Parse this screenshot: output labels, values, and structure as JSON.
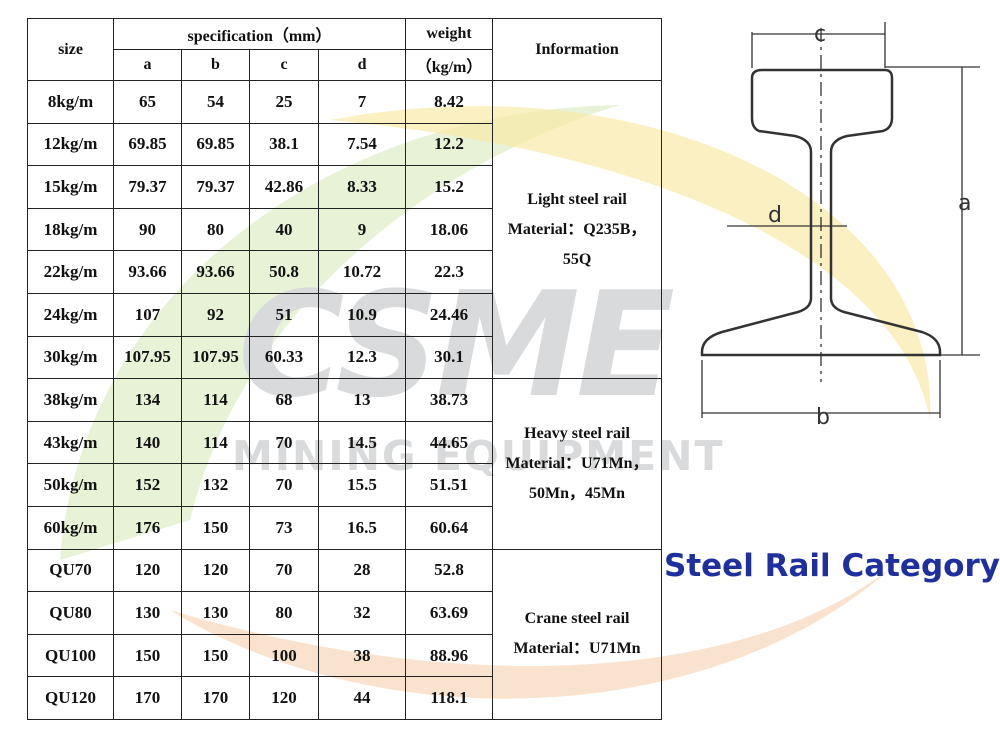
{
  "header": {
    "size": "size",
    "specification": "specification（mm）",
    "weight": "weight",
    "weight_unit": "（kg/m）",
    "information": "Information",
    "cols": [
      "a",
      "b",
      "c",
      "d"
    ]
  },
  "rows": [
    {
      "size": "8kg/m",
      "a": "65",
      "b": "54",
      "c": "25",
      "d": "7",
      "weight": "8.42"
    },
    {
      "size": "12kg/m",
      "a": "69.85",
      "b": "69.85",
      "c": "38.1",
      "d": "7.54",
      "weight": "12.2"
    },
    {
      "size": "15kg/m",
      "a": "79.37",
      "b": "79.37",
      "c": "42.86",
      "d": "8.33",
      "weight": "15.2"
    },
    {
      "size": "18kg/m",
      "a": "90",
      "b": "80",
      "c": "40",
      "d": "9",
      "weight": "18.06"
    },
    {
      "size": "22kg/m",
      "a": "93.66",
      "b": "93.66",
      "c": "50.8",
      "d": "10.72",
      "weight": "22.3"
    },
    {
      "size": "24kg/m",
      "a": "107",
      "b": "92",
      "c": "51",
      "d": "10.9",
      "weight": "24.46"
    },
    {
      "size": "30kg/m",
      "a": "107.95",
      "b": "107.95",
      "c": "60.33",
      "d": "12.3",
      "weight": "30.1"
    },
    {
      "size": "38kg/m",
      "a": "134",
      "b": "114",
      "c": "68",
      "d": "13",
      "weight": "38.73"
    },
    {
      "size": "43kg/m",
      "a": "140",
      "b": "114",
      "c": "70",
      "d": "14.5",
      "weight": "44.65"
    },
    {
      "size": "50kg/m",
      "a": "152",
      "b": "132",
      "c": "70",
      "d": "15.5",
      "weight": "51.51"
    },
    {
      "size": "60kg/m",
      "a": "176",
      "b": "150",
      "c": "73",
      "d": "16.5",
      "weight": "60.64"
    },
    {
      "size": "QU70",
      "a": "120",
      "b": "120",
      "c": "70",
      "d": "28",
      "weight": "52.8"
    },
    {
      "size": "QU80",
      "a": "130",
      "b": "130",
      "c": "80",
      "d": "32",
      "weight": "63.69"
    },
    {
      "size": "QU100",
      "a": "150",
      "b": "150",
      "c": "100",
      "d": "38",
      "weight": "88.96"
    },
    {
      "size": "QU120",
      "a": "170",
      "b": "170",
      "c": "120",
      "d": "44",
      "weight": "118.1"
    }
  ],
  "info_groups": [
    {
      "line1": "Light steel rail",
      "line2": "Material：Q235B，",
      "line3": "55Q"
    },
    {
      "line1": "Heavy steel rail",
      "line2": "Material：U71Mn，",
      "line3": "50Mn，45Mn"
    },
    {
      "line1": "Crane steel rail",
      "line2": "Material：U71Mn",
      "line3": ""
    }
  ],
  "diagram": {
    "label_a": "a",
    "label_b": "b",
    "label_c": "c",
    "label_d": "d"
  },
  "watermark": {
    "logo": "CSME",
    "tagline": "MINING EQUIPMENT"
  },
  "category_title": "Steel Rail Category",
  "colors": {
    "title": "#1f2f9e",
    "border": "#222222",
    "watermark": "#d9dadb"
  }
}
